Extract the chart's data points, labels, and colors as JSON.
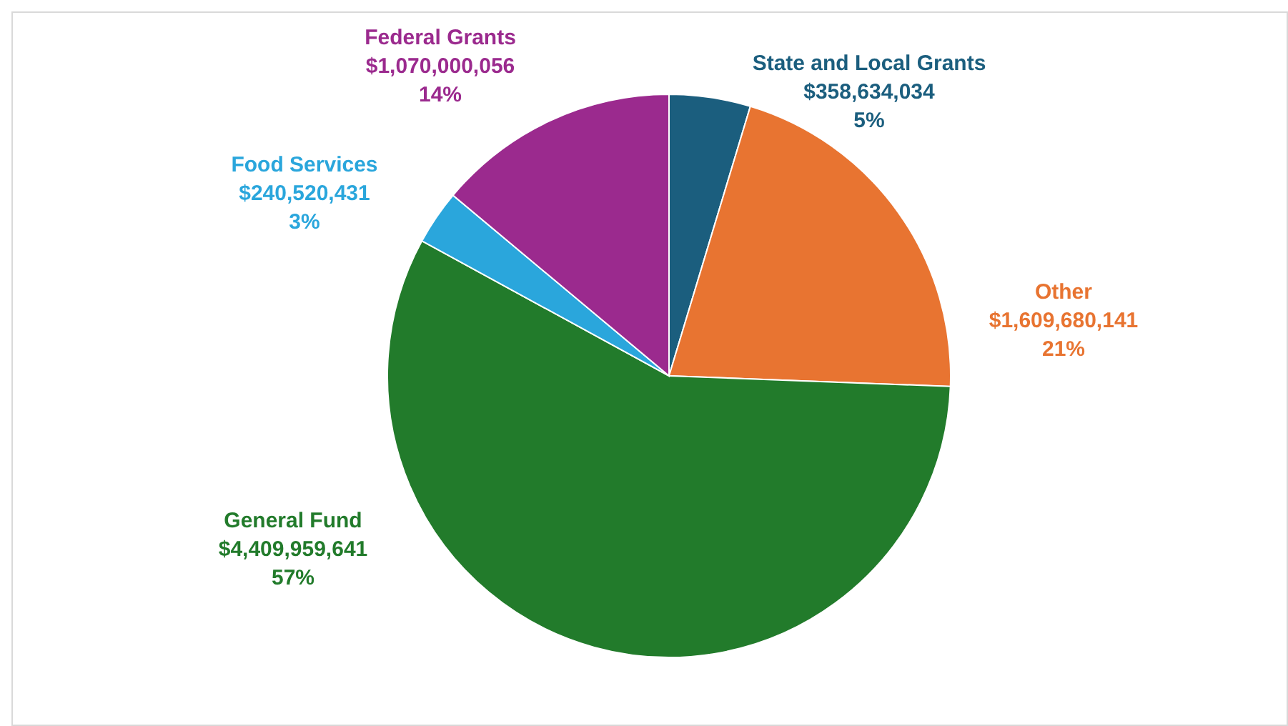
{
  "chart_data": {
    "type": "pie",
    "categories": [
      "State and Local Grants",
      "Other",
      "General Fund",
      "Food Services",
      "Federal Grants"
    ],
    "values": [
      358634034,
      1609680141,
      4409959641,
      240520431,
      1070000056
    ],
    "colors": [
      "#1b5e7e",
      "#e87431",
      "#227b2b",
      "#2aa6dc",
      "#9b2a8e"
    ],
    "value_labels": [
      "$358,634,034\n5%",
      "$1,609,680,141\n21%",
      "$4,409,959,641\n57%",
      "$240,520,431\n3%",
      "$1,070,000,056\n14%"
    ]
  }
}
